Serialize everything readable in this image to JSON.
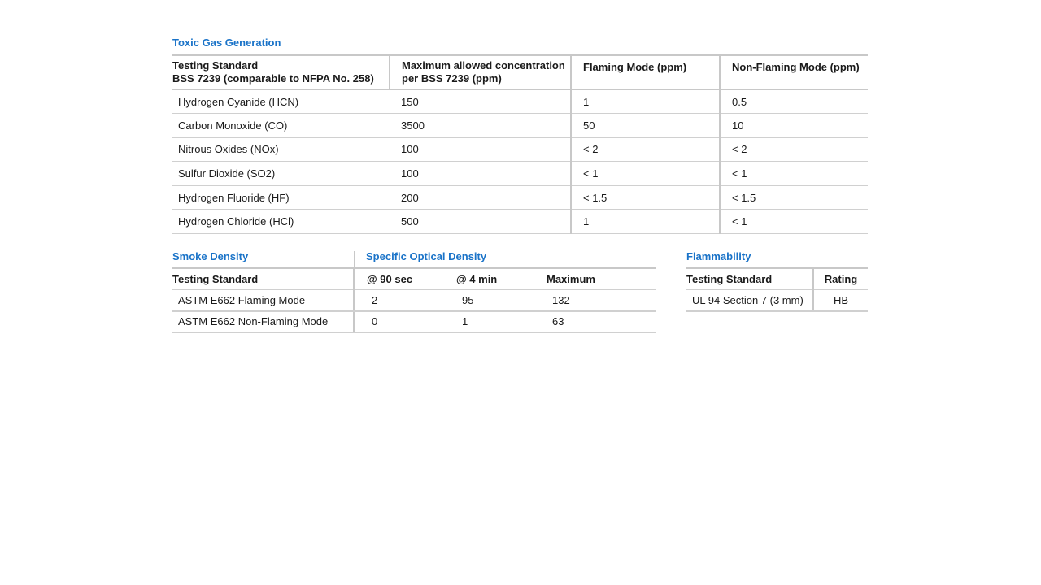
{
  "toxic": {
    "title": "Toxic Gas Generation",
    "headers": [
      "Testing Standard\nBSS 7239 (comparable to NFPA No. 258)",
      "Maximum allowed concentration\nper BSS 7239 (ppm)",
      "Flaming Mode (ppm)",
      "Non-Flaming Mode (ppm)"
    ],
    "header0_line1": "Testing Standard",
    "header0_line2": "BSS 7239 (comparable to NFPA No. 258)",
    "header1_line1": "Maximum allowed concentration",
    "header1_line2": "per BSS 7239 (ppm)",
    "rows": [
      [
        "Hydrogen Cyanide (HCN)",
        "150",
        "1",
        "0.5"
      ],
      [
        "Carbon Monoxide (CO)",
        "3500",
        "50",
        "10"
      ],
      [
        "Nitrous Oxides (NOx)",
        "100",
        "< 2",
        "< 2"
      ],
      [
        "Sulfur Dioxide (SO2)",
        "100",
        "< 1",
        "< 1"
      ],
      [
        "Hydrogen Fluoride (HF)",
        "200",
        "< 1.5",
        "< 1.5"
      ],
      [
        "Hydrogen Chloride (HCl)",
        "500",
        "1",
        "< 1"
      ]
    ]
  },
  "smoke": {
    "title": "Smoke Density",
    "subtitle": "Specific Optical Density",
    "headers": [
      "Testing Standard",
      "@ 90 sec",
      "@ 4 min",
      "Maximum"
    ],
    "rows": [
      [
        "ASTM E662 Flaming Mode",
        "2",
        "95",
        "132"
      ],
      [
        "ASTM E662 Non-Flaming Mode",
        "0",
        "1",
        "63"
      ]
    ]
  },
  "flammability": {
    "title": "Flammability",
    "headers": [
      "Testing Standard",
      "Rating"
    ],
    "rows": [
      [
        "UL 94 Section 7 (3 mm)",
        "HB"
      ]
    ]
  }
}
